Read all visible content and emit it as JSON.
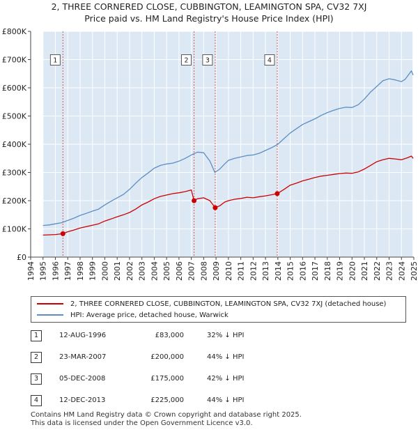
{
  "title_line1": "2, THREE CORNERED CLOSE, CUBBINGTON, LEAMINGTON SPA, CV32 7XJ",
  "title_line2": "Price paid vs. HM Land Registry's House Price Index (HPI)",
  "legend": {
    "property": "2, THREE CORNERED CLOSE, CUBBINGTON, LEAMINGTON SPA, CV32 7XJ (detached house)",
    "hpi": "HPI: Average price, detached house, Warwick"
  },
  "sales": [
    {
      "num": "1",
      "date": "12-AUG-1996",
      "price": "£83,000",
      "hpi": "32% ↓ HPI"
    },
    {
      "num": "2",
      "date": "23-MAR-2007",
      "price": "£200,000",
      "hpi": "44% ↓ HPI"
    },
    {
      "num": "3",
      "date": "05-DEC-2008",
      "price": "£175,000",
      "hpi": "42% ↓ HPI"
    },
    {
      "num": "4",
      "date": "12-DEC-2013",
      "price": "£225,000",
      "hpi": "44% ↓ HPI"
    }
  ],
  "footer": {
    "line1": "Contains HM Land Registry data © Crown copyright and database right 2025.",
    "line2": "This data is licensed under the Open Government Licence v3.0."
  },
  "colors": {
    "property": "#cc0000",
    "hpi": "#5b8ec4",
    "shade": "#dde8f5",
    "marker_line": "#d9534f"
  },
  "chart_data": {
    "type": "line",
    "xlim": [
      1994,
      2025
    ],
    "ylim": [
      0,
      800000
    ],
    "y_ticks": [
      {
        "value": 0,
        "label": "£0"
      },
      {
        "value": 100000,
        "label": "£100K"
      },
      {
        "value": 200000,
        "label": "£200K"
      },
      {
        "value": 300000,
        "label": "£300K"
      },
      {
        "value": 400000,
        "label": "£400K"
      },
      {
        "value": 500000,
        "label": "£500K"
      },
      {
        "value": 600000,
        "label": "£600K"
      },
      {
        "value": 700000,
        "label": "£700K"
      },
      {
        "value": 800000,
        "label": "£800K"
      }
    ],
    "x_ticks": [
      "1994",
      "1995",
      "1996",
      "1997",
      "1998",
      "1999",
      "2000",
      "2001",
      "2002",
      "2003",
      "2004",
      "2005",
      "2006",
      "2007",
      "2008",
      "2009",
      "2010",
      "2011",
      "2012",
      "2013",
      "2014",
      "2015",
      "2016",
      "2017",
      "2018",
      "2019",
      "2020",
      "2021",
      "2022",
      "2023",
      "2024",
      "2025"
    ],
    "shaded_ranges": [
      [
        1995.0,
        2024.9
      ]
    ],
    "markers": [
      {
        "num": "1",
        "x": 1996.61,
        "y": 83000
      },
      {
        "num": "2",
        "x": 2007.22,
        "y": 200000
      },
      {
        "num": "3",
        "x": 2008.93,
        "y": 175000
      },
      {
        "num": "4",
        "x": 2013.95,
        "y": 225000
      }
    ],
    "series": [
      {
        "name": "2, THREE CORNERED CLOSE, CUBBINGTON, LEAMINGTON SPA, CV32 7XJ (detached house)",
        "x": [
          1995.0,
          1995.5,
          1996.0,
          1996.61,
          1997.0,
          1997.5,
          1998.0,
          1998.5,
          1999.0,
          1999.5,
          2000.0,
          2000.5,
          2001.0,
          2001.5,
          2002.0,
          2002.5,
          2003.0,
          2003.5,
          2004.0,
          2004.5,
          2005.0,
          2005.5,
          2006.0,
          2006.5,
          2007.0,
          2007.22,
          2007.5,
          2008.0,
          2008.5,
          2008.93,
          2009.3,
          2009.7,
          2010.0,
          2010.5,
          2011.0,
          2011.5,
          2012.0,
          2012.5,
          2013.0,
          2013.5,
          2013.95,
          2014.5,
          2015.0,
          2015.5,
          2016.0,
          2016.5,
          2017.0,
          2017.5,
          2018.0,
          2018.5,
          2019.0,
          2019.5,
          2020.0,
          2020.5,
          2021.0,
          2021.5,
          2022.0,
          2022.5,
          2023.0,
          2023.5,
          2024.0,
          2024.5,
          2024.8,
          2024.95
        ],
        "values": [
          78000,
          79000,
          80000,
          83000,
          90000,
          96000,
          103000,
          108000,
          113000,
          118000,
          128000,
          135000,
          143000,
          150000,
          158000,
          170000,
          185000,
          195000,
          207000,
          215000,
          220000,
          225000,
          228000,
          232000,
          238000,
          200000,
          207000,
          210000,
          200000,
          175000,
          182000,
          195000,
          200000,
          205000,
          208000,
          212000,
          210000,
          214000,
          217000,
          221000,
          225000,
          240000,
          255000,
          262000,
          270000,
          276000,
          282000,
          287000,
          290000,
          293000,
          296000,
          298000,
          297000,
          302000,
          312000,
          325000,
          338000,
          345000,
          350000,
          348000,
          345000,
          352000,
          358000,
          350000
        ]
      },
      {
        "name": "HPI: Average price, detached house, Warwick",
        "x": [
          1995.0,
          1995.5,
          1996.0,
          1996.5,
          1997.0,
          1997.5,
          1998.0,
          1998.5,
          1999.0,
          1999.5,
          2000.0,
          2000.5,
          2001.0,
          2001.5,
          2002.0,
          2002.5,
          2003.0,
          2003.5,
          2004.0,
          2004.5,
          2005.0,
          2005.5,
          2006.0,
          2006.5,
          2007.0,
          2007.5,
          2008.0,
          2008.5,
          2008.9,
          2009.3,
          2009.7,
          2010.0,
          2010.5,
          2011.0,
          2011.5,
          2012.0,
          2012.5,
          2013.0,
          2013.5,
          2014.0,
          2014.5,
          2015.0,
          2015.5,
          2016.0,
          2016.5,
          2017.0,
          2017.5,
          2018.0,
          2018.5,
          2019.0,
          2019.5,
          2020.0,
          2020.5,
          2021.0,
          2021.5,
          2022.0,
          2022.5,
          2023.0,
          2023.5,
          2024.0,
          2024.3,
          2024.6,
          2024.8,
          2024.95
        ],
        "values": [
          112000,
          114000,
          118000,
          122000,
          130000,
          138000,
          148000,
          155000,
          163000,
          170000,
          185000,
          198000,
          210000,
          222000,
          240000,
          262000,
          282000,
          298000,
          315000,
          325000,
          330000,
          333000,
          340000,
          350000,
          362000,
          372000,
          370000,
          340000,
          300000,
          312000,
          330000,
          343000,
          350000,
          355000,
          360000,
          362000,
          368000,
          378000,
          388000,
          400000,
          420000,
          440000,
          455000,
          470000,
          480000,
          490000,
          502000,
          512000,
          520000,
          527000,
          531000,
          530000,
          540000,
          560000,
          585000,
          605000,
          625000,
          632000,
          628000,
          622000,
          630000,
          648000,
          660000,
          645000
        ]
      }
    ]
  }
}
